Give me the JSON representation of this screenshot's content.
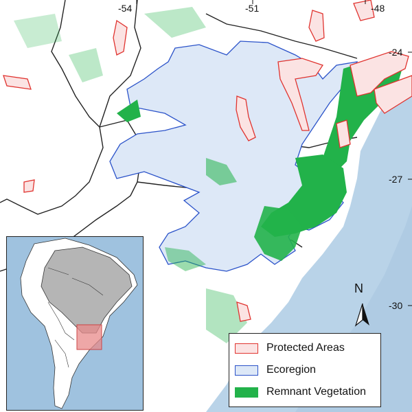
{
  "map": {
    "longitude_ticks": [
      "-54",
      "-51",
      "-48"
    ],
    "latitude_ticks": [
      "-24",
      "-27",
      "-30"
    ],
    "north_label": "N",
    "legend": [
      {
        "label": "Protected Areas",
        "icon": "red-outline-swatch",
        "fill": "#fbe3e3",
        "stroke": "#e0332f"
      },
      {
        "label": "Ecoregion",
        "icon": "blue-outline-swatch",
        "fill": "#dde8f7",
        "stroke": "#2a52c9"
      },
      {
        "label": "Remnant Vegetation",
        "icon": "green-swatch",
        "fill": "#22b24a",
        "stroke": "#22b24a"
      }
    ],
    "colors": {
      "ocean": "#b9d3e8",
      "land": "#ffffff",
      "ecoregion_fill": "#dde8f7",
      "ecoregion_stroke": "#2a52c9",
      "protected_fill": "#fbe3e3",
      "protected_stroke": "#e0332f",
      "vegetation": "#22b24a",
      "inset_highlight": "#e88a8a",
      "inset_country": "#b5b5b5"
    }
  }
}
